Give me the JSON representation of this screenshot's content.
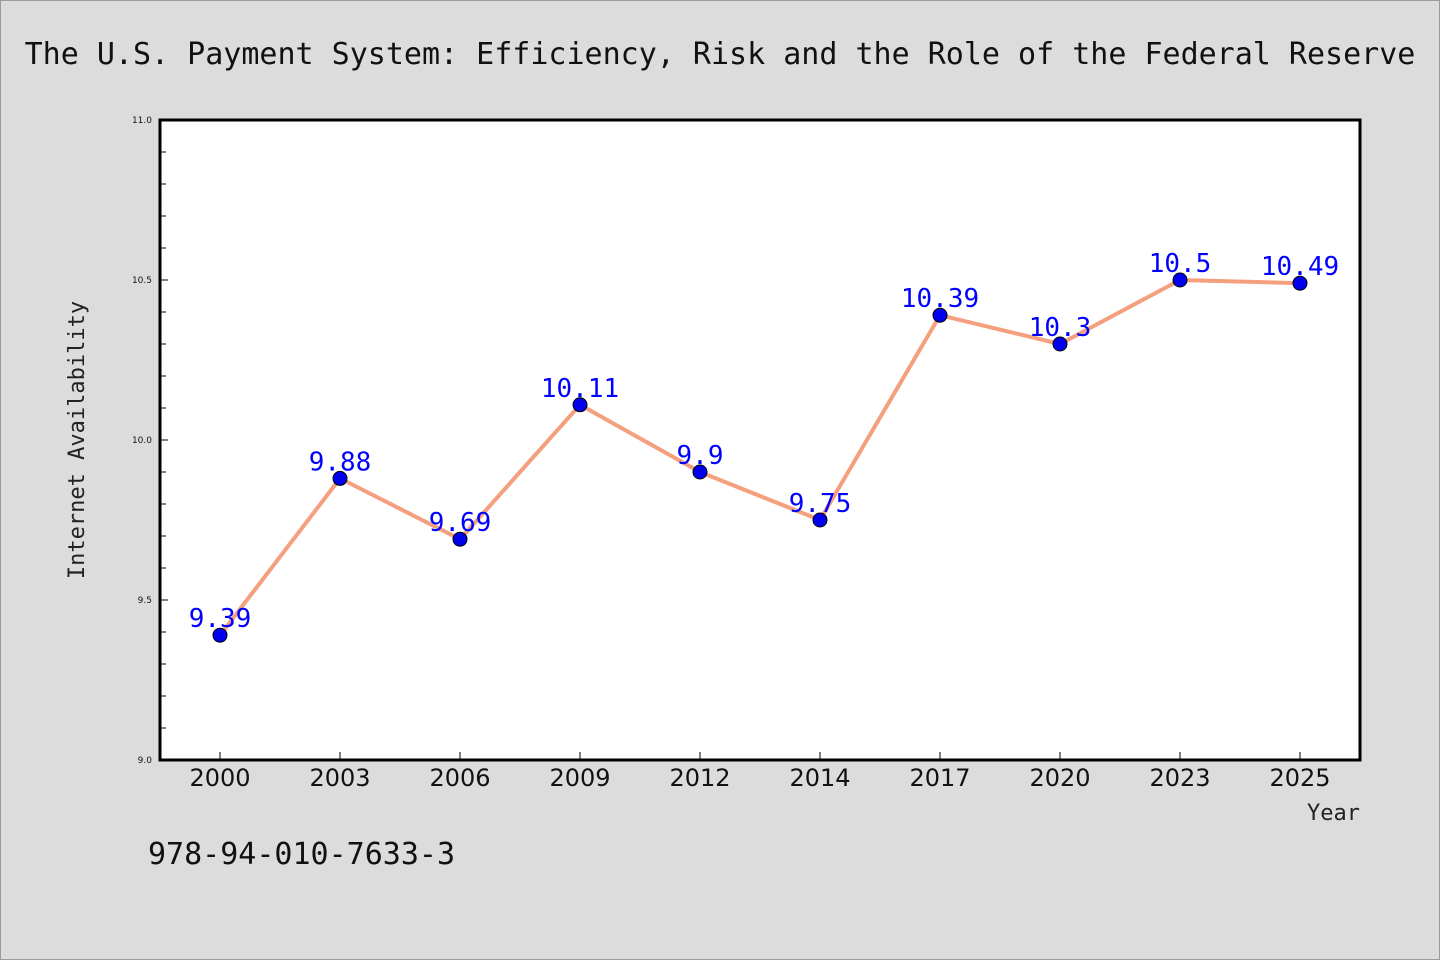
{
  "chart_data": {
    "type": "line",
    "title": "The U.S. Payment System: Efficiency, Risk and the Role of the Federal Reserve",
    "xlabel": "Year",
    "ylabel": "Internet Availability",
    "categories": [
      "2000",
      "2003",
      "2006",
      "2009",
      "2012",
      "2014",
      "2017",
      "2020",
      "2023",
      "2025"
    ],
    "series": [
      {
        "values": [
          9.39,
          9.88,
          9.69,
          10.11,
          9.9,
          9.75,
          10.39,
          10.3,
          10.5,
          10.49
        ]
      }
    ],
    "data_labels": [
      "9.39",
      "9.88",
      "9.69",
      "10.11",
      "9.9",
      "9.75",
      "10.39",
      "10.3",
      "10.5",
      "10.49"
    ],
    "ylim": [
      9.0,
      11.0
    ],
    "yticks": [
      "9.0",
      "9.5",
      "10.0",
      "10.5",
      "11.0"
    ],
    "grid": false,
    "colors": {
      "line": "#f4a07e",
      "marker": "#0000ee",
      "marker_edge": "#000000",
      "data_label": "#0000ff",
      "plot_background": "#ffffff",
      "figure_background": "#dcdcdc"
    }
  },
  "footer": {
    "isbn": "978-94-010-7633-3"
  }
}
